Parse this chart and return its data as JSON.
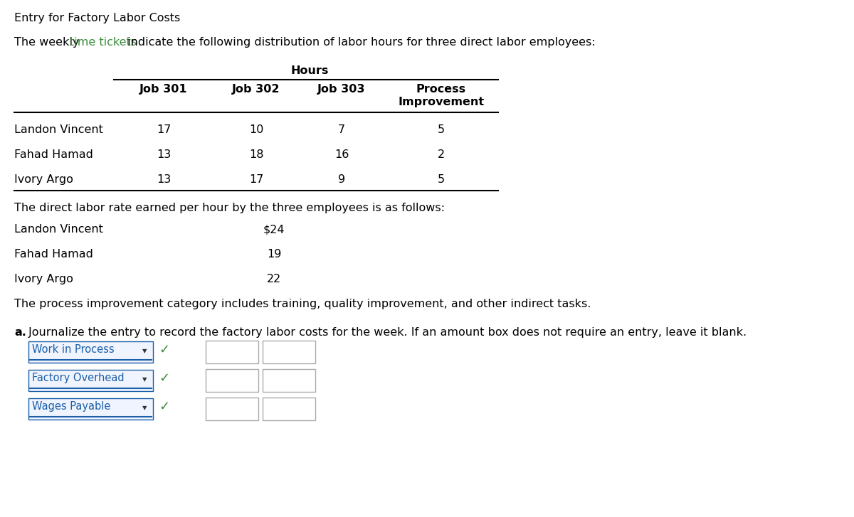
{
  "title": "Entry for Factory Labor Costs",
  "time_tickets_color": "#3d8b3d",
  "hours_label": "Hours",
  "col_headers": [
    "Job 301",
    "Job 302",
    "Job 303",
    "Process",
    "Improvement"
  ],
  "row_labels": [
    "Landon Vincent",
    "Fahad Hamad",
    "Ivory Argo"
  ],
  "table_data": [
    [
      17,
      10,
      7,
      5
    ],
    [
      13,
      18,
      16,
      2
    ],
    [
      13,
      17,
      9,
      5
    ]
  ],
  "rate_label": "The direct labor rate earned per hour by the three employees is as follows:",
  "rate_employees": [
    "Landon Vincent",
    "Fahad Hamad",
    "Ivory Argo"
  ],
  "rate_values": [
    "$24",
    "19",
    "22"
  ],
  "process_note": "The process improvement category includes training, quality improvement, and other indirect tasks.",
  "part_a_text": " Journalize the entry to record the factory labor costs for the week. If an amount box does not require an entry, leave it blank.",
  "journal_entries": [
    "Work in Process",
    "Factory Overhead",
    "Wages Payable"
  ],
  "bg_color": "#ffffff",
  "text_color": "#000000",
  "link_color": "#1a5fa8",
  "check_color": "#3d8b3d"
}
